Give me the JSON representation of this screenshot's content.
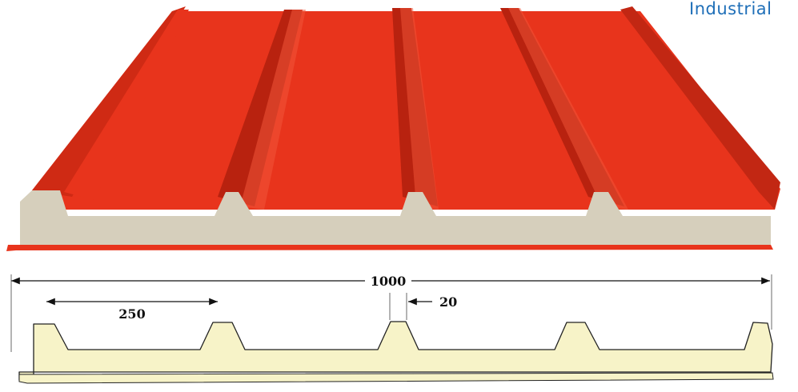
{
  "caption": "Industrial",
  "dimensions": {
    "total_width": "1000",
    "rib_pitch": "250",
    "rib_top": "20"
  },
  "colors": {
    "sheet": "#e8341c",
    "sheet_shadow": "#b8220f",
    "sheet_light": "#f1553a",
    "core_3d": "#d6cfbc",
    "core_profile": "#f7f3c8",
    "caption": "#1f6fb8",
    "dimension_line": "#111111"
  }
}
